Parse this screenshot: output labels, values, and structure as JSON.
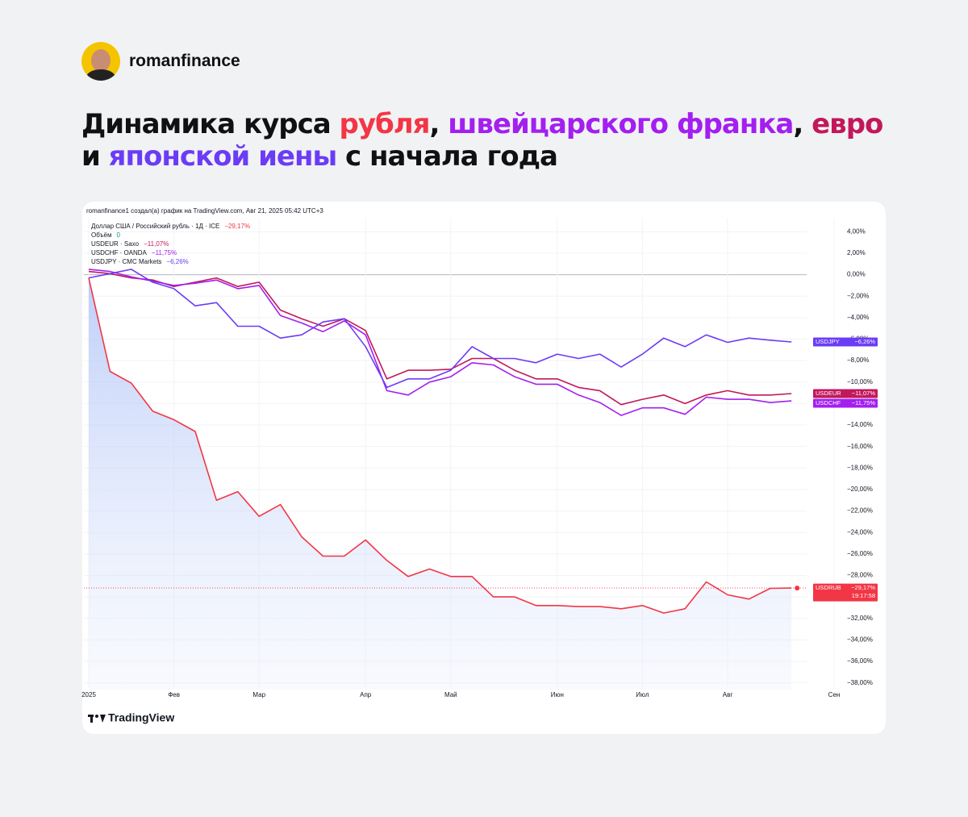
{
  "header": {
    "author": "romanfinance"
  },
  "title": {
    "lines": [
      [
        {
          "text": "Динамика курса ",
          "color": "#111111"
        },
        {
          "text": "рубля",
          "color": "#f23645"
        },
        {
          "text": ", ",
          "color": "#111111"
        },
        {
          "text": "швейцарского франка",
          "color": "#a31ff0"
        },
        {
          "text": ", ",
          "color": "#111111"
        },
        {
          "text": "евро",
          "color": "#c2185b"
        }
      ],
      [
        {
          "text": "и ",
          "color": "#111111"
        },
        {
          "text": "японской иены",
          "color": "#6b3cf6"
        },
        {
          "text": " с начала года",
          "color": "#111111"
        }
      ]
    ]
  },
  "footer": {
    "brand": "TradingView"
  },
  "chart_data": {
    "type": "line",
    "caption": "romanfinance1 создал(а) график на TradingView.com, Авг 21, 2025 05:42 UTC+3",
    "categories": [
      "2025",
      null,
      null,
      null,
      "Фев",
      null,
      null,
      null,
      "Мар",
      null,
      null,
      null,
      null,
      "Апр",
      null,
      null,
      null,
      "Май",
      null,
      null,
      null,
      null,
      "Июн",
      null,
      null,
      null,
      "Июл",
      null,
      null,
      null,
      "Авг",
      null,
      null,
      null,
      null,
      "Сен"
    ],
    "volume": {
      "label": "Объём",
      "value": 0
    },
    "series": [
      {
        "name": "USDRUB",
        "legend": "Доллар США / Российский рубль · 1Д · ICE",
        "color": "#f23645",
        "area": true,
        "countdown": "19:17:58",
        "values": [
          -0.3,
          -9,
          -10.1,
          -12.7,
          -13.5,
          -14.6,
          -21,
          -20.2,
          -22.5,
          -21.4,
          -24.4,
          -26.2,
          -26.2,
          -24.7,
          -26.6,
          -28.1,
          -27.4,
          -28.1,
          -28.1,
          -30,
          -30,
          -30.8,
          -30.8,
          -30.9,
          -30.9,
          -31.1,
          -30.8,
          -31.5,
          -31.1,
          -28.6,
          -29.8,
          -30.2,
          -29.2,
          -29.17,
          null,
          null
        ],
        "value_labels": [
          null,
          null,
          null,
          null,
          null,
          null,
          null,
          null,
          null,
          null,
          null,
          null,
          null,
          null,
          null,
          null,
          null,
          null,
          null,
          null,
          null,
          null,
          null,
          null,
          null,
          null,
          null,
          null,
          null,
          null,
          null,
          null,
          null,
          "−29,17%",
          null,
          null
        ]
      },
      {
        "name": "USDEUR",
        "legend": "USDEUR · Saxo",
        "color": "#c2185b",
        "values": [
          0.3,
          0.1,
          -0.3,
          -0.5,
          -1.1,
          -0.7,
          -0.3,
          -1.1,
          -0.7,
          -3.3,
          -4.1,
          -4.8,
          -4.1,
          -5.2,
          -9.7,
          -8.9,
          -8.9,
          -8.8,
          -7.8,
          -7.8,
          -8.9,
          -9.7,
          -9.7,
          -10.5,
          -10.8,
          -12.1,
          -11.6,
          -11.2,
          -12,
          -11.2,
          -10.8,
          -11.2,
          -11.2,
          -11.07,
          null,
          null
        ],
        "value_labels": [
          null,
          null,
          null,
          null,
          null,
          null,
          null,
          null,
          null,
          null,
          null,
          null,
          null,
          null,
          null,
          null,
          null,
          null,
          null,
          null,
          null,
          null,
          null,
          null,
          null,
          null,
          null,
          null,
          null,
          null,
          null,
          null,
          null,
          "−11,07%",
          null,
          null
        ]
      },
      {
        "name": "USDCHF",
        "legend": "USDCHF · OANDA",
        "color": "#a31ff0",
        "values": [
          0.5,
          0.3,
          -0.2,
          -0.6,
          -1,
          -0.8,
          -0.5,
          -1.3,
          -1,
          -3.8,
          -4.5,
          -5.3,
          -4.3,
          -5.6,
          -10.8,
          -11.2,
          -10,
          -9.5,
          -8.2,
          -8.4,
          -9.5,
          -10.2,
          -10.2,
          -11.2,
          -11.9,
          -13.1,
          -12.4,
          -12.4,
          -13,
          -11.4,
          -11.6,
          -11.6,
          -11.9,
          -11.75,
          null,
          null
        ],
        "value_labels": [
          null,
          null,
          null,
          null,
          null,
          null,
          null,
          null,
          null,
          null,
          null,
          null,
          null,
          null,
          null,
          null,
          null,
          null,
          null,
          null,
          null,
          null,
          null,
          null,
          null,
          null,
          null,
          null,
          null,
          null,
          null,
          null,
          null,
          "−11,75%",
          null,
          null
        ]
      },
      {
        "name": "USDJPY",
        "legend": "USDJPY · CMC Markets",
        "color": "#6b3cf6",
        "values": [
          -0.3,
          0.1,
          0.5,
          -0.7,
          -1.3,
          -2.9,
          -2.6,
          -4.8,
          -4.8,
          -5.9,
          -5.6,
          -4.4,
          -4.1,
          -6.7,
          -10.5,
          -9.7,
          -9.7,
          -8.9,
          -6.7,
          -7.8,
          -7.8,
          -8.2,
          -7.4,
          -7.8,
          -7.4,
          -8.6,
          -7.4,
          -5.9,
          -6.7,
          -5.6,
          -6.3,
          -5.9,
          -6.1,
          -6.26,
          null,
          null
        ],
        "value_labels": [
          null,
          null,
          null,
          null,
          null,
          null,
          null,
          null,
          null,
          null,
          null,
          null,
          null,
          null,
          null,
          null,
          null,
          null,
          null,
          null,
          null,
          null,
          null,
          null,
          null,
          null,
          null,
          null,
          null,
          null,
          null,
          null,
          null,
          "−6,26%",
          null,
          null
        ]
      }
    ],
    "ylim": [
      -39,
      5.3
    ],
    "yticks": [
      {
        "value": 4,
        "label": "4,00%"
      },
      {
        "value": 2,
        "label": "2,00%"
      },
      {
        "value": 0,
        "label": "0,00%"
      },
      {
        "value": -2,
        "label": "−2,00%"
      },
      {
        "value": -4,
        "label": "−4,00%"
      },
      {
        "value": -6,
        "label": "−6,00%"
      },
      {
        "value": -8,
        "label": "−8,00%"
      },
      {
        "value": -10,
        "label": "−10,00%"
      },
      {
        "value": -12,
        "label": "−12,00%"
      },
      {
        "value": -14,
        "label": "−14,00%"
      },
      {
        "value": -16,
        "label": "−16,00%"
      },
      {
        "value": -18,
        "label": "−18,00%"
      },
      {
        "value": -20,
        "label": "−20,00%"
      },
      {
        "value": -22,
        "label": "−22,00%"
      },
      {
        "value": -24,
        "label": "−24,00%"
      },
      {
        "value": -26,
        "label": "−26,00%"
      },
      {
        "value": -28,
        "label": "−28,00%"
      },
      {
        "value": -30,
        "label": "−30,00%"
      },
      {
        "value": -32,
        "label": "−32,00%"
      },
      {
        "value": -34,
        "label": "−34,00%"
      },
      {
        "value": -36,
        "label": "−36,00%"
      },
      {
        "value": -38,
        "label": "−38,00%"
      }
    ],
    "grid": true
  }
}
